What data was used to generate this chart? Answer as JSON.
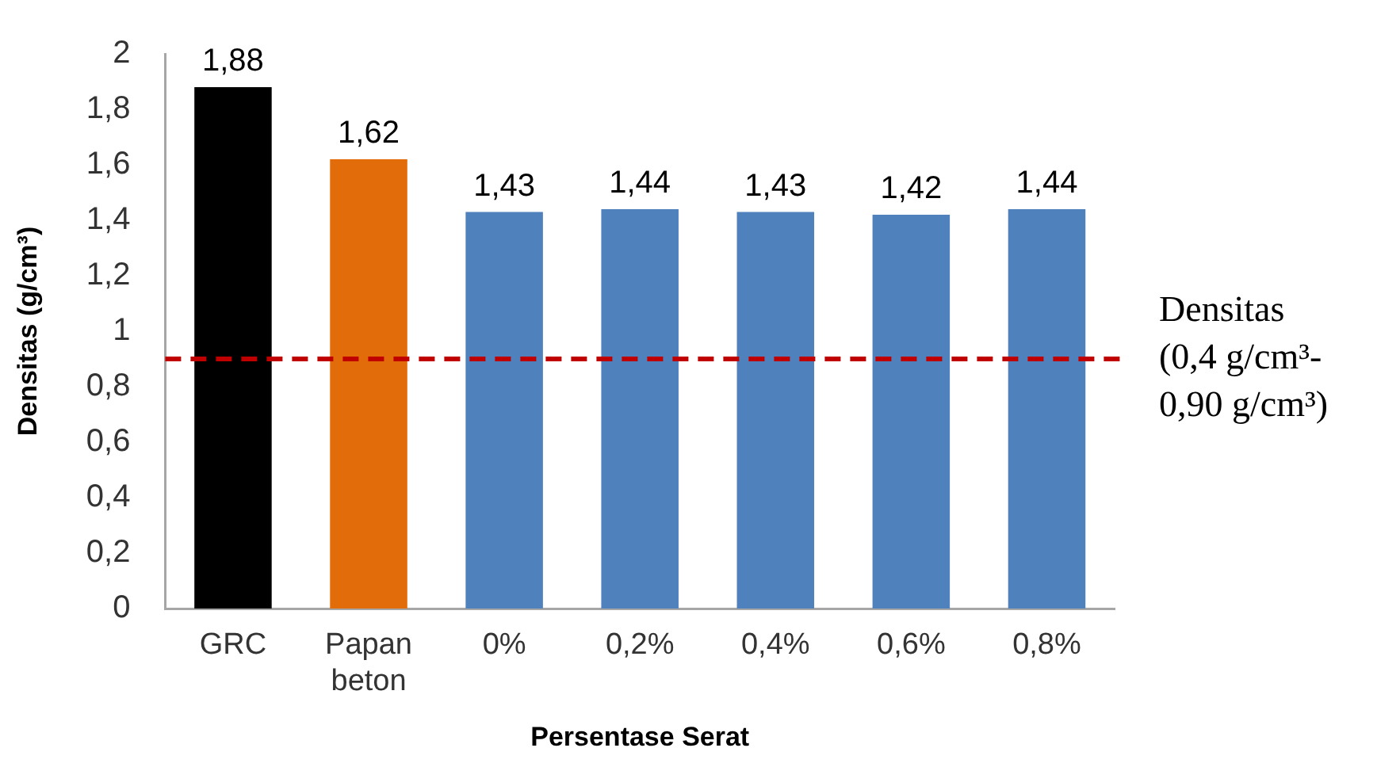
{
  "chart_data": {
    "type": "bar",
    "xlabel": "Persentase Serat",
    "ylabel": "Densitas (g/cm³)",
    "categories": [
      "GRC",
      "Papan beton",
      "0%",
      "0,2%",
      "0,4%",
      "0,6%",
      "0,8%"
    ],
    "values": [
      1.88,
      1.62,
      1.43,
      1.44,
      1.43,
      1.42,
      1.44
    ],
    "colors": [
      "#000000",
      "#e36c0a",
      "#4f81bd",
      "#4f81bd",
      "#4f81bd",
      "#4f81bd",
      "#4f81bd"
    ],
    "value_labels": [
      "1,88",
      "1,62",
      "1,43",
      "1,44",
      "1,43",
      "1,42",
      "1,44"
    ],
    "ylim": [
      0,
      2
    ],
    "yticks": [
      0,
      {
        "value": 0.2,
        "label": "0,2"
      },
      {
        "value": 0.4,
        "label": "0,4"
      },
      {
        "value": 0.6,
        "label": "0,6"
      },
      {
        "value": 0.8,
        "label": "0,8"
      },
      1,
      {
        "value": 1.2,
        "label": "1,2"
      },
      {
        "value": 1.4,
        "label": "1,4"
      },
      {
        "value": 1.6,
        "label": "1,6"
      },
      {
        "value": 1.8,
        "label": "1,8"
      },
      2
    ],
    "ref_lines": [
      {
        "axis": "y",
        "value": 0.9,
        "label": "Densitas\n(0,4 g/cm³-\n0,90 g/cm³)",
        "color": "#c00000",
        "line_style": "dashed"
      }
    ],
    "grid": false,
    "legend": false
  }
}
